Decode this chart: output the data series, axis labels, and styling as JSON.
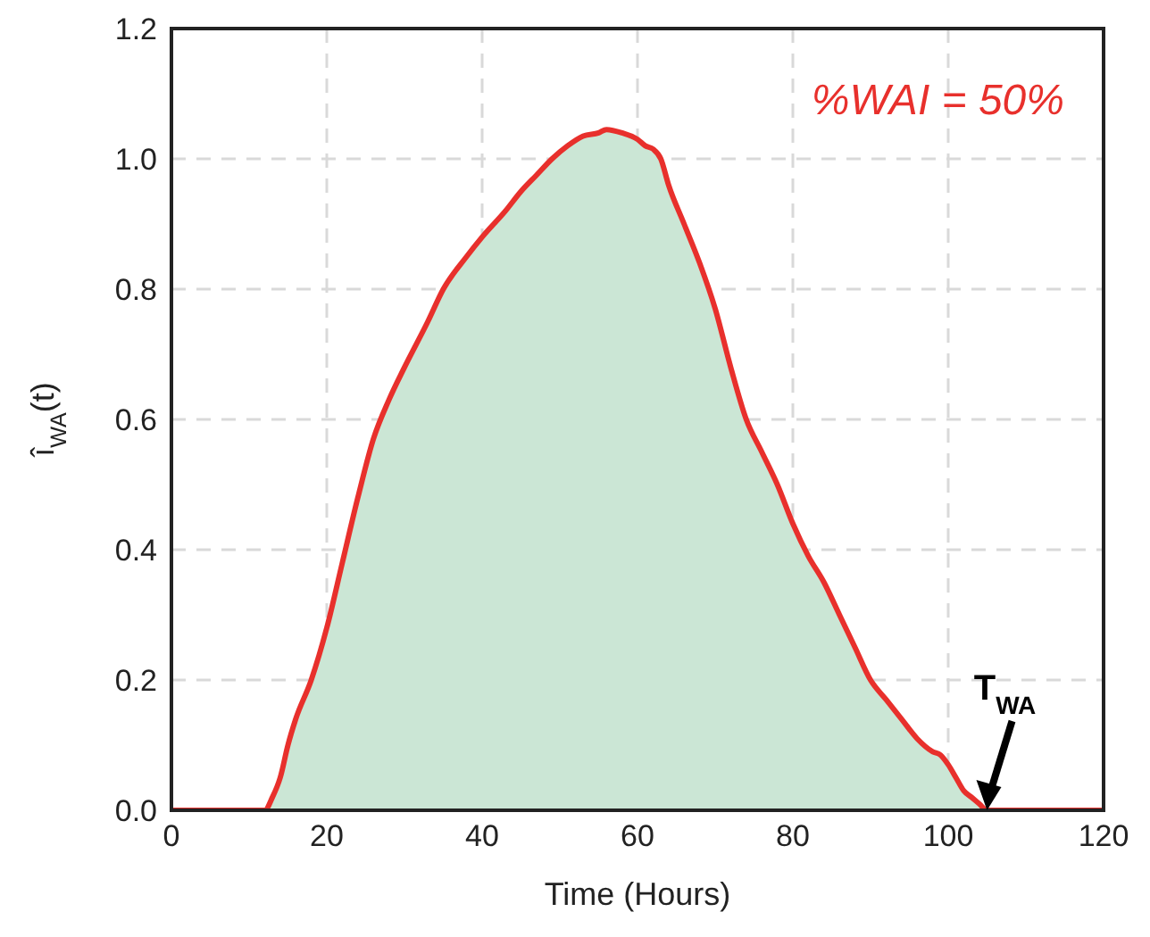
{
  "chart_data": {
    "type": "area",
    "xlabel": "Time (Hours)",
    "ylabel": "î$_{WA}$(t)",
    "x": [
      0,
      10,
      12,
      13,
      14,
      15,
      16,
      18,
      20,
      22,
      24,
      26,
      28,
      30,
      33,
      35,
      38,
      40,
      43,
      45,
      47,
      49,
      51,
      53,
      55,
      56,
      58,
      60,
      61,
      62,
      63,
      64,
      66,
      68,
      70,
      72,
      74,
      76,
      78,
      80,
      82,
      84,
      86,
      88,
      90,
      92,
      94,
      96,
      98,
      99,
      100,
      101,
      102,
      103,
      104,
      105,
      110,
      120
    ],
    "series": [
      {
        "color": "#e8302c",
        "values": [
          0,
          0,
          0,
          0.02,
          0.05,
          0.1,
          0.14,
          0.2,
          0.28,
          0.38,
          0.48,
          0.57,
          0.63,
          0.68,
          0.75,
          0.8,
          0.85,
          0.88,
          0.92,
          0.95,
          0.975,
          1.0,
          1.02,
          1.035,
          1.04,
          1.045,
          1.04,
          1.03,
          1.02,
          1.015,
          1.0,
          0.96,
          0.9,
          0.84,
          0.77,
          0.68,
          0.6,
          0.55,
          0.5,
          0.44,
          0.39,
          0.35,
          0.3,
          0.25,
          0.2,
          0.17,
          0.14,
          0.11,
          0.09,
          0.085,
          0.07,
          0.05,
          0.03,
          0.02,
          0.01,
          0,
          0,
          0
        ]
      }
    ],
    "xlim": [
      0,
      120
    ],
    "xticks": [
      0,
      20,
      40,
      60,
      80,
      100,
      120
    ],
    "ylim": [
      0,
      1.2
    ],
    "yticks": [
      {
        "value": 0,
        "label": "0.0"
      },
      {
        "value": 0.2,
        "label": "0.2"
      },
      {
        "value": 0.4,
        "label": "0.4"
      },
      {
        "value": 0.6,
        "label": "0.6"
      },
      {
        "value": 0.8,
        "label": "0.8"
      },
      {
        "value": 1,
        "label": "1.0"
      },
      {
        "value": 1.2,
        "label": "1.2"
      }
    ],
    "grid": true,
    "annotations": [
      "%WAI = 50%",
      {
        "text": "T$_{WA}$",
        "x": 105,
        "y": 0
      }
    ]
  }
}
